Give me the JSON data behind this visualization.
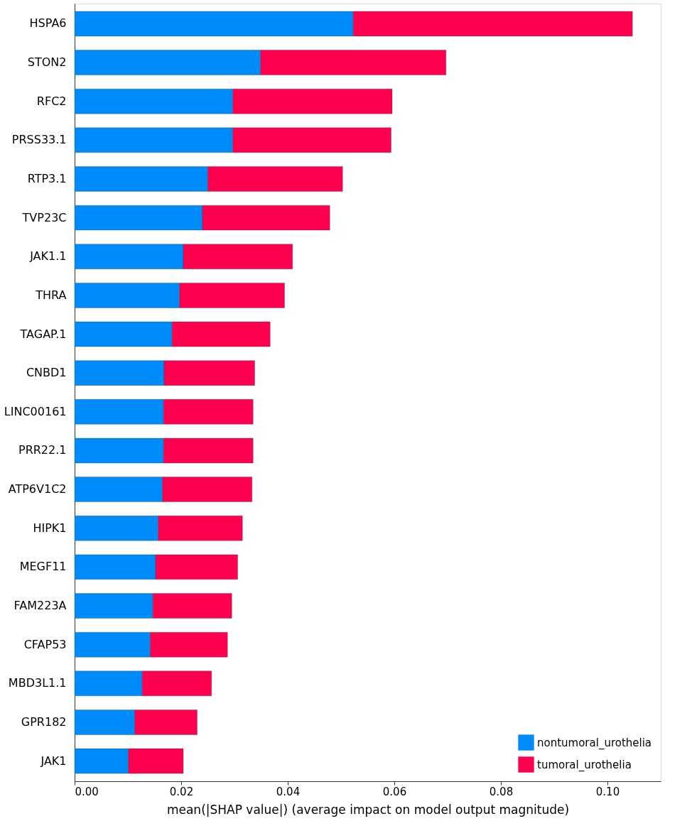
{
  "chart_data": {
    "type": "bar",
    "orientation": "horizontal",
    "stacked": true,
    "xlabel": "mean(|SHAP value|) (average impact on model output magnitude)",
    "categories": [
      "HSPA6",
      "STON2",
      "RFC2",
      "PRSS33.1",
      "RTP3.1",
      "TVP23C",
      "JAK1.1",
      "THRA",
      "TAGAP.1",
      "CNBD1",
      "LINC00161",
      "PRR22.1",
      "ATP6V1C2",
      "HIPK1",
      "MEGF11",
      "FAM223A",
      "CFAP53",
      "MBD3L1.1",
      "GPR182",
      "JAK1"
    ],
    "series": [
      {
        "name": "nontumoral_urothelia",
        "color": "#008bfb",
        "values": [
          0.0523,
          0.0349,
          0.0297,
          0.0297,
          0.025,
          0.024,
          0.0204,
          0.0197,
          0.0183,
          0.0168,
          0.0167,
          0.0167,
          0.0165,
          0.0157,
          0.0152,
          0.0147,
          0.0142,
          0.0127,
          0.0113,
          0.0101
        ]
      },
      {
        "name": "tumoral_urothelia",
        "color": "#ff0051",
        "values": [
          0.0524,
          0.0348,
          0.0299,
          0.0297,
          0.0253,
          0.0239,
          0.0205,
          0.0197,
          0.0184,
          0.017,
          0.0168,
          0.0168,
          0.0168,
          0.0158,
          0.0154,
          0.0148,
          0.0145,
          0.013,
          0.0117,
          0.0103
        ]
      }
    ],
    "xlim": [
      0,
      0.11
    ],
    "xticks": [
      {
        "value": 0,
        "label": "0.00"
      },
      {
        "value": 0.02,
        "label": "0.02"
      },
      {
        "value": 0.04,
        "label": "0.04"
      },
      {
        "value": 0.06,
        "label": "0.06"
      },
      {
        "value": 0.08,
        "label": "0.08"
      },
      {
        "value": 0.1,
        "label": "0.10"
      }
    ],
    "grid": false,
    "legend": "bottom right"
  }
}
